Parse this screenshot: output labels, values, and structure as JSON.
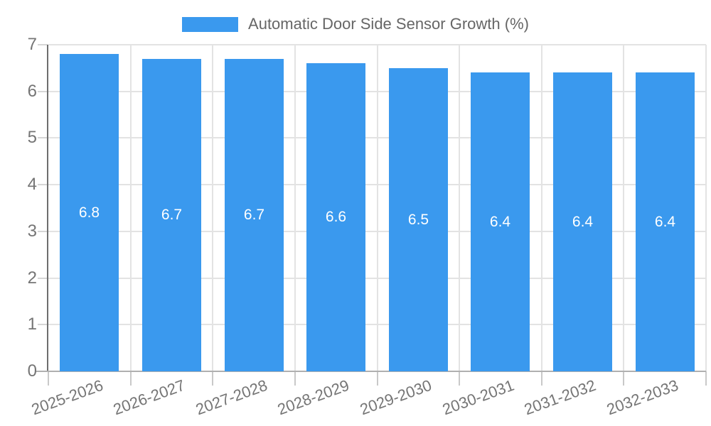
{
  "chart_data": {
    "type": "bar",
    "title": "Automatic Door Side Sensor Growth (%)",
    "series_name": "Automatic Door Side Sensor Growth (%)",
    "categories": [
      "2025-2026",
      "2026-2027",
      "2027-2028",
      "2028-2029",
      "2029-2030",
      "2030-2031",
      "2031-2032",
      "2032-2033"
    ],
    "values": [
      6.8,
      6.7,
      6.7,
      6.6,
      6.5,
      6.4,
      6.4,
      6.4
    ],
    "data_labels": [
      "6.8",
      "6.7",
      "6.7",
      "6.6",
      "6.5",
      "6.4",
      "6.4",
      "6.4"
    ],
    "xlabel": "",
    "ylabel": "",
    "ylim": [
      0,
      7
    ],
    "yticks": [
      0,
      1,
      2,
      3,
      4,
      5,
      6,
      7
    ],
    "legend_position": "top",
    "grid": true,
    "x_label_rotation_deg": -20,
    "bar_color": "#3a99ee",
    "data_label_color": "#ffffff",
    "grid_color": "#e3e3e3",
    "axis_line_color": "#6e6e6e",
    "baseline_color": "#b0b0b0",
    "tick_label_color": "#757575",
    "legend_text_color": "#666666"
  }
}
